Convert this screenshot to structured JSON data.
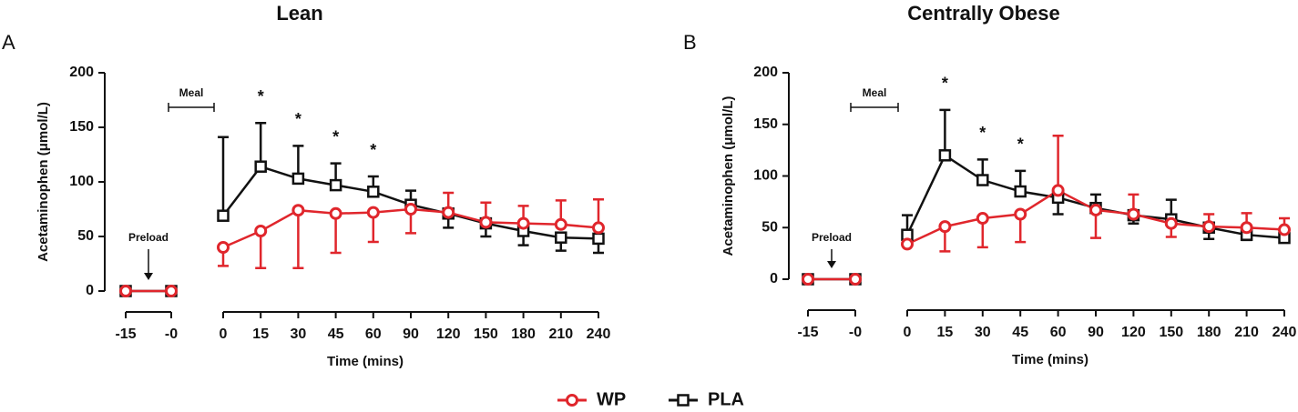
{
  "chart_data": [
    {
      "type": "line",
      "panel": "A",
      "title": "Lean",
      "x_label": "Time (mins)",
      "y_label": "Acetaminophen (μmol/L)",
      "categories": [
        "-15",
        "-0",
        "0",
        "15",
        "30",
        "45",
        "60",
        "90",
        "120",
        "150",
        "180",
        "210",
        "240"
      ],
      "ylim": [
        0,
        200
      ],
      "yticks": [
        0,
        50,
        100,
        150,
        200
      ],
      "series": [
        {
          "name": "WP",
          "color": "#e0262c",
          "marker": "circle",
          "values": [
            0,
            0,
            40,
            55,
            74,
            71,
            72,
            75,
            72,
            63,
            62,
            61,
            58
          ],
          "errors": [
            0,
            0,
            17,
            34,
            53,
            36,
            27,
            22,
            18,
            18,
            16,
            22,
            26
          ]
        },
        {
          "name": "PLA",
          "color": "#111111",
          "marker": "square",
          "values": [
            0,
            0,
            69,
            114,
            103,
            97,
            91,
            79,
            71,
            62,
            55,
            49,
            48
          ],
          "errors": [
            0,
            0,
            72,
            40,
            30,
            20,
            14,
            13,
            13,
            12,
            13,
            12,
            13
          ]
        }
      ],
      "significance": [
        {
          "x": "15",
          "text": "*"
        },
        {
          "x": "30",
          "text": "*"
        },
        {
          "x": "45",
          "text": "*"
        },
        {
          "x": "60",
          "text": "*"
        }
      ],
      "meal": "Meal",
      "preload": "Preload"
    },
    {
      "type": "line",
      "panel": "B",
      "title": "Centrally Obese",
      "x_label": "Time (mins)",
      "y_label": "Acetaminophen (μmol/L)",
      "categories": [
        "-15",
        "-0",
        "0",
        "15",
        "30",
        "45",
        "60",
        "90",
        "120",
        "150",
        "180",
        "210",
        "240"
      ],
      "ylim": [
        0,
        200
      ],
      "yticks": [
        0,
        50,
        100,
        150,
        200
      ],
      "series": [
        {
          "name": "WP",
          "color": "#e0262c",
          "marker": "circle",
          "values": [
            0,
            0,
            34,
            51,
            59,
            63,
            86,
            67,
            63,
            54,
            51,
            50,
            48
          ],
          "errors": [
            0,
            0,
            0,
            24,
            28,
            27,
            53,
            27,
            19,
            13,
            12,
            14,
            11
          ]
        },
        {
          "name": "PLA",
          "color": "#111111",
          "marker": "square",
          "values": [
            0,
            0,
            43,
            120,
            96,
            85,
            79,
            69,
            62,
            58,
            50,
            43,
            40
          ],
          "errors": [
            0,
            0,
            19,
            44,
            20,
            20,
            16,
            13,
            8,
            19,
            11,
            5,
            4
          ]
        }
      ],
      "significance": [
        {
          "x": "15",
          "text": "*"
        },
        {
          "x": "30",
          "text": "*"
        },
        {
          "x": "45",
          "text": "*"
        }
      ],
      "meal": "Meal",
      "preload": "Preload"
    }
  ]
}
